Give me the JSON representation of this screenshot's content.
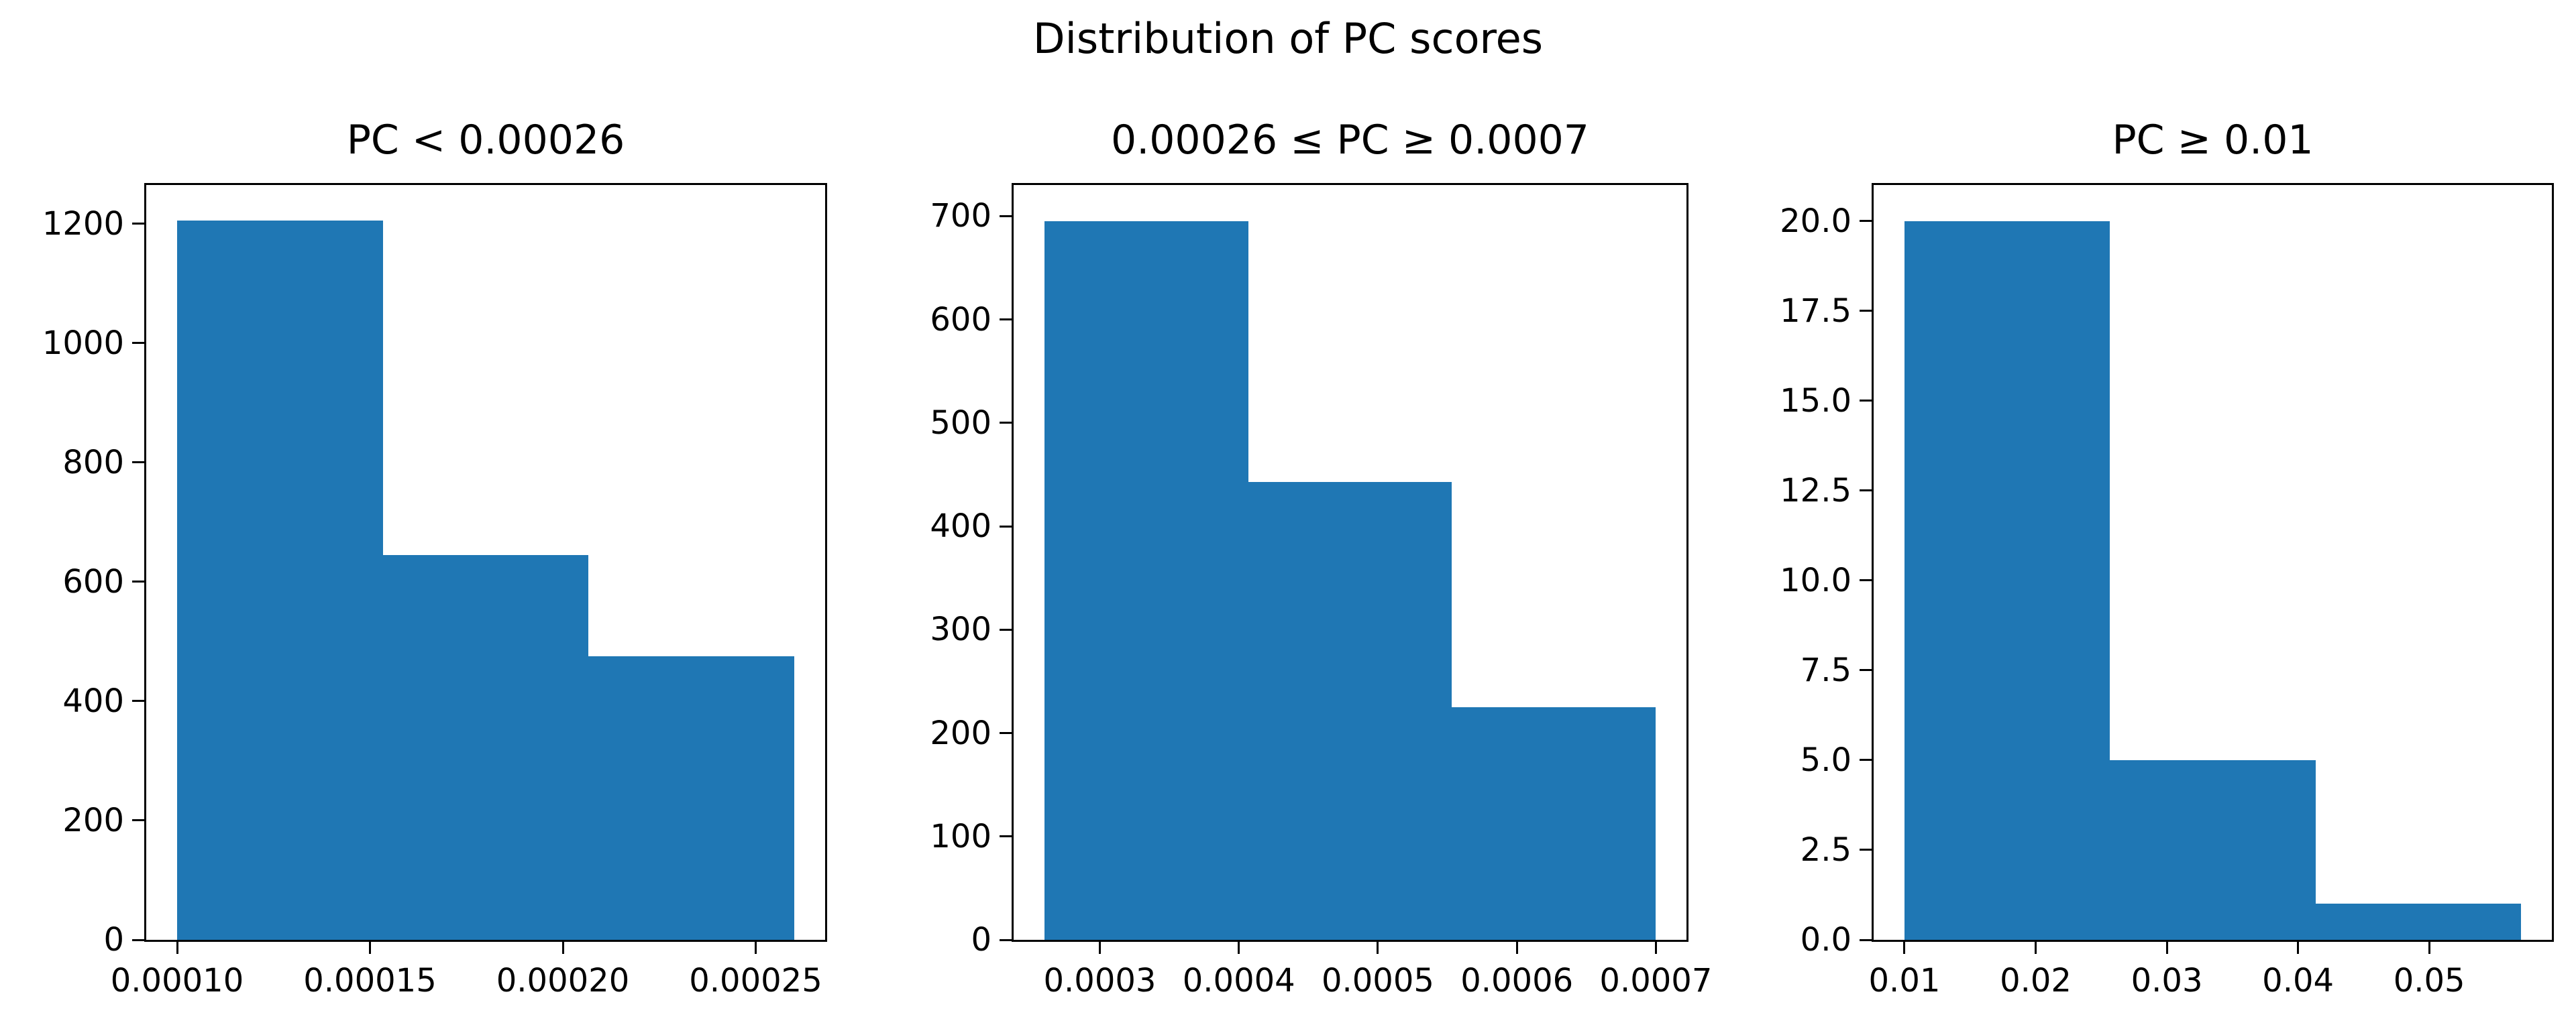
{
  "figure": {
    "suptitle": "Distribution of PC scores",
    "background_color": "#ffffff",
    "bar_color": "#1f77b4",
    "axis_color": "#000000",
    "text_color": "#000000"
  },
  "chart_data": [
    {
      "type": "bar",
      "subtype": "histogram",
      "title": "PC < 0.00026",
      "bin_edges": [
        0.0001,
        0.00015333,
        0.00020667,
        0.00026
      ],
      "values": [
        1205,
        645,
        475
      ],
      "xlim": [
        9.2e-05,
        0.000268
      ],
      "ylim": [
        0,
        1265
      ],
      "grid": false,
      "legend": null,
      "xlabel": "",
      "ylabel": "",
      "xticks": {
        "values": [
          0.0001,
          0.00015,
          0.0002,
          0.00025
        ],
        "labels": [
          "0.00010",
          "0.00015",
          "0.00020",
          "0.00025"
        ]
      },
      "yticks": {
        "values": [
          0,
          200,
          400,
          600,
          800,
          1000,
          1200
        ],
        "labels": [
          "0",
          "200",
          "400",
          "600",
          "800",
          "1000",
          "1200"
        ]
      }
    },
    {
      "type": "bar",
      "subtype": "histogram",
      "title": "0.00026 ≤ PC ≥ 0.0007",
      "bin_edges": [
        0.00026,
        0.00040667,
        0.00055333,
        0.0007
      ],
      "values": [
        695,
        443,
        225
      ],
      "xlim": [
        0.000238,
        0.000722
      ],
      "ylim": [
        0,
        730
      ],
      "grid": false,
      "legend": null,
      "xlabel": "",
      "ylabel": "",
      "xticks": {
        "values": [
          0.0003,
          0.0004,
          0.0005,
          0.0006,
          0.0007
        ],
        "labels": [
          "0.0003",
          "0.0004",
          "0.0005",
          "0.0006",
          "0.0007"
        ]
      },
      "yticks": {
        "values": [
          0,
          100,
          200,
          300,
          400,
          500,
          600,
          700
        ],
        "labels": [
          "0",
          "100",
          "200",
          "300",
          "400",
          "500",
          "600",
          "700"
        ]
      }
    },
    {
      "type": "bar",
      "subtype": "histogram",
      "title": "PC ≥ 0.01",
      "bin_edges": [
        0.01,
        0.025667,
        0.041333,
        0.057
      ],
      "values": [
        20,
        5,
        1
      ],
      "xlim": [
        0.00765,
        0.05935
      ],
      "ylim": [
        0,
        21
      ],
      "grid": false,
      "legend": null,
      "xlabel": "",
      "ylabel": "",
      "xticks": {
        "values": [
          0.01,
          0.02,
          0.03,
          0.04,
          0.05
        ],
        "labels": [
          "0.01",
          "0.02",
          "0.03",
          "0.04",
          "0.05"
        ]
      },
      "yticks": {
        "values": [
          0,
          2.5,
          5,
          7.5,
          10,
          12.5,
          15,
          17.5,
          20
        ],
        "labels": [
          "0.0",
          "2.5",
          "5.0",
          "7.5",
          "10.0",
          "12.5",
          "15.0",
          "17.5",
          "20.0"
        ]
      }
    }
  ]
}
